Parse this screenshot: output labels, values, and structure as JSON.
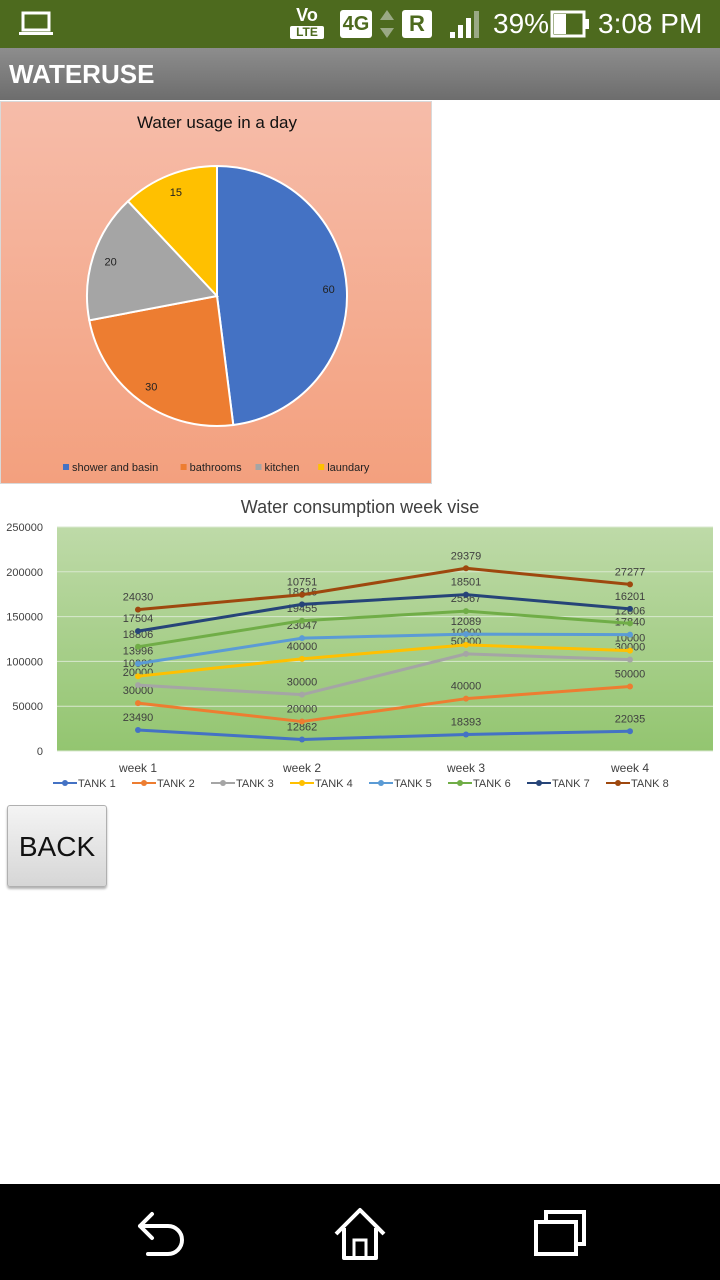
{
  "status_bar": {
    "volte_top": "Vo",
    "volte_bottom": "LTE",
    "network": "4G",
    "roaming": "R",
    "battery": "39%",
    "time": "3:08 PM"
  },
  "app_bar": {
    "title": "WATERUSE"
  },
  "back_button": {
    "label": "BACK"
  },
  "colors": {
    "status_bar": "#4d6a1e",
    "app_bar": "#7b7b7b",
    "pie_bg": "#f5b096",
    "plot_bg": "#a8d08d"
  },
  "chart_data": [
    {
      "type": "pie",
      "title": "Water usage in a day",
      "legend_position": "bottom",
      "categories": [
        "shower and basin",
        "bathrooms",
        "kitchen",
        "laundary"
      ],
      "values": [
        60,
        30,
        20,
        15
      ],
      "colors": [
        "#4472c4",
        "#ed7d31",
        "#a5a5a5",
        "#ffc000"
      ]
    },
    {
      "type": "line",
      "title": "Water consumption  week vise",
      "categories": [
        "week 1",
        "week 2",
        "week 3",
        "week 4"
      ],
      "ylim": [
        0,
        250000
      ],
      "yticks": [
        "250000",
        "200000",
        "150000",
        "100000",
        "50000",
        "0"
      ],
      "grid": true,
      "stacked": true,
      "legend_position": "bottom",
      "series": [
        {
          "name": "TANK 1",
          "color": "#4472c4",
          "values": [
            23490,
            12862,
            18393,
            22035
          ]
        },
        {
          "name": "TANK 2",
          "color": "#ed7d31",
          "values": [
            30000,
            20000,
            40000,
            50000
          ]
        },
        {
          "name": "TANK 3",
          "color": "#a5a5a5",
          "values": [
            20000,
            30000,
            50000,
            30000
          ]
        },
        {
          "name": "TANK 4",
          "color": "#ffc000",
          "values": [
            10000,
            40000,
            10000,
            10000
          ]
        },
        {
          "name": "TANK 5",
          "color": "#5b9bd5",
          "values": [
            13996,
            23047,
            12089,
            17840
          ]
        },
        {
          "name": "TANK 6",
          "color": "#70ad47",
          "values": [
            18806,
            19455,
            25567,
            12606
          ]
        },
        {
          "name": "TANK 7",
          "color": "#264478",
          "values": [
            17504,
            18316,
            18501,
            16201
          ]
        },
        {
          "name": "TANK 8",
          "color": "#9e480e",
          "values": [
            24030,
            10751,
            29379,
            27277
          ]
        }
      ]
    }
  ]
}
